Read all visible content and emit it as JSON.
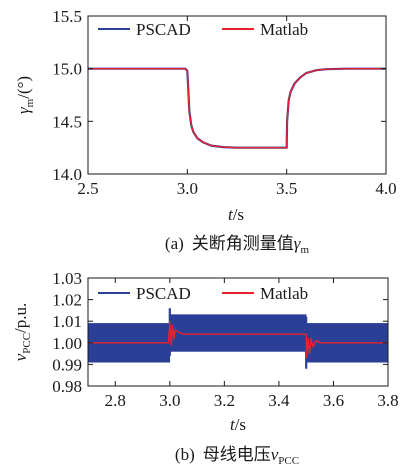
{
  "chart_data": [
    {
      "type": "line",
      "panel_label": "(a)",
      "caption_text": "关断角测量值",
      "caption_symbol": "γ",
      "caption_sub": "m",
      "ylabel_symbol": "γ",
      "ylabel_sub": "m",
      "ylabel_unit": "/(°)",
      "xlabel_italic": "t",
      "xlabel_unit": "/s",
      "xlim": [
        2.5,
        4.0
      ],
      "ylim": [
        14.0,
        15.5
      ],
      "xticks": [
        "2.5",
        "3.0",
        "3.5",
        "4.0"
      ],
      "yticks": [
        "14.0",
        "14.5",
        "15.0",
        "15.5"
      ],
      "grid": false,
      "legend_position": "top",
      "series": [
        {
          "name": "PSCAD",
          "color": "#2b3f96",
          "x": [
            2.5,
            2.99,
            3.0,
            3.005,
            3.01,
            3.02,
            3.03,
            3.05,
            3.08,
            3.12,
            3.18,
            3.25,
            3.35,
            3.45,
            3.5,
            3.502,
            3.51,
            3.52,
            3.54,
            3.57,
            3.6,
            3.65,
            3.7,
            3.8,
            4.0
          ],
          "y": [
            15.0,
            15.0,
            14.98,
            14.8,
            14.6,
            14.46,
            14.4,
            14.34,
            14.3,
            14.27,
            14.255,
            14.25,
            14.25,
            14.25,
            14.25,
            14.5,
            14.7,
            14.78,
            14.86,
            14.92,
            14.96,
            14.985,
            14.995,
            15.0,
            15.0
          ]
        },
        {
          "name": "Matlab",
          "color": "#e8232c",
          "x": [
            2.5,
            2.99,
            3.0,
            3.005,
            3.01,
            3.02,
            3.03,
            3.05,
            3.08,
            3.12,
            3.18,
            3.25,
            3.35,
            3.45,
            3.5,
            3.502,
            3.51,
            3.52,
            3.54,
            3.57,
            3.6,
            3.65,
            3.7,
            3.8,
            4.0
          ],
          "y": [
            15.0,
            15.0,
            14.98,
            14.8,
            14.6,
            14.46,
            14.4,
            14.34,
            14.3,
            14.27,
            14.255,
            14.25,
            14.25,
            14.25,
            14.25,
            14.5,
            14.7,
            14.78,
            14.86,
            14.92,
            14.96,
            14.985,
            14.995,
            15.0,
            15.0
          ]
        }
      ]
    },
    {
      "type": "line",
      "panel_label": "(b)",
      "caption_text": "母线电压",
      "caption_symbol": "v",
      "caption_sub": "PCC",
      "ylabel_symbol": "v",
      "ylabel_sub": "PCC",
      "ylabel_unit": "/p.u.",
      "xlabel_italic": "t",
      "xlabel_unit": "/s",
      "xlim": [
        2.7,
        3.8
      ],
      "ylim": [
        0.98,
        1.03
      ],
      "xticks": [
        "2.8",
        "3.0",
        "3.2",
        "3.4",
        "3.6",
        "3.8"
      ],
      "yticks": [
        "0.98",
        "0.99",
        "1.00",
        "1.01",
        "1.02",
        "1.03"
      ],
      "grid": false,
      "legend_position": "top",
      "series": [
        {
          "name": "PSCAD",
          "color": "#2b3f96",
          "style": "oscillating band",
          "x": [
            2.7,
            3.0,
            3.0,
            3.5,
            3.5,
            3.8
          ],
          "y_upper": [
            1.009,
            1.009,
            1.013,
            1.013,
            1.009,
            1.009
          ],
          "y_lower": [
            0.991,
            0.991,
            0.996,
            0.996,
            0.991,
            0.991
          ],
          "spikes": [
            {
              "x": 3.0,
              "y_max": 1.016,
              "y_min": 0.994
            },
            {
              "x": 3.5,
              "y_max": 1.012,
              "y_min": 0.988
            }
          ]
        },
        {
          "name": "Matlab",
          "color": "#e8232c",
          "x": [
            2.7,
            2.995,
            3.0,
            3.005,
            3.01,
            3.015,
            3.02,
            3.03,
            3.05,
            3.5,
            3.502,
            3.507,
            3.512,
            3.518,
            3.525,
            3.535,
            3.55,
            3.8
          ],
          "y": [
            1.0,
            1.0,
            1.01,
            0.999,
            1.008,
            1.002,
            1.006,
            1.005,
            1.004,
            1.004,
            0.993,
            1.002,
            0.995,
            1.002,
            0.998,
            1.001,
            1.0,
            1.0
          ]
        }
      ]
    }
  ]
}
